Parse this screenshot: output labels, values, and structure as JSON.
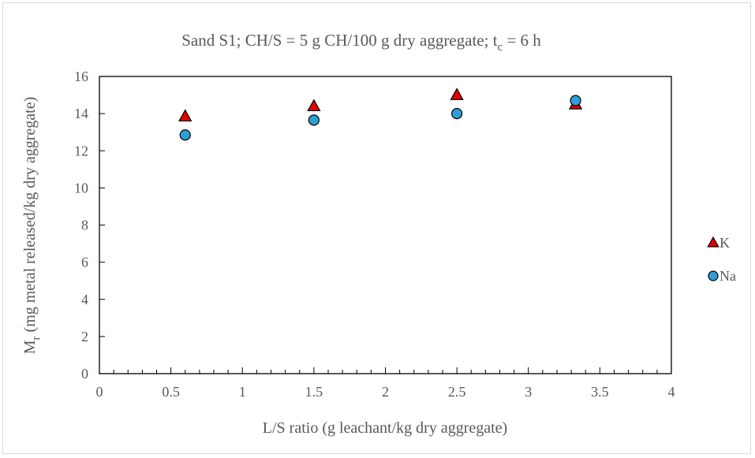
{
  "chart_data": {
    "type": "scatter",
    "title_parts": {
      "main": "Sand S1; CH/S = 5 g CH/100 g dry aggregate; t",
      "sub": "c",
      "tail": " = 6 h"
    },
    "xlabel": "L/S ratio (g leachant/kg dry aggregate)",
    "ylabel_parts": {
      "main": "M",
      "sub": "r",
      "tail": " (mg metal released/kg dry aggregate)"
    },
    "xlim": [
      0,
      4
    ],
    "ylim": [
      0,
      16
    ],
    "x_ticks": [
      0,
      0.5,
      1,
      1.5,
      2,
      2.5,
      3,
      3.5,
      4
    ],
    "x_tick_labels": [
      "0",
      "0.5",
      "1",
      "1.5",
      "2",
      "2.5",
      "3",
      "3.5",
      "4"
    ],
    "x_minor_step": 0.1,
    "y_ticks": [
      0,
      2,
      4,
      6,
      8,
      10,
      12,
      14,
      16
    ],
    "y_tick_labels": [
      "0",
      "2",
      "4",
      "6",
      "8",
      "10",
      "12",
      "14",
      "16"
    ],
    "grid": false,
    "legend_position": "right",
    "series": [
      {
        "name": "K",
        "marker": "triangle",
        "color": "#e60000",
        "points": [
          {
            "x": 0.6,
            "y": 13.85
          },
          {
            "x": 1.5,
            "y": 14.4
          },
          {
            "x": 2.5,
            "y": 15.0
          },
          {
            "x": 3.33,
            "y": 14.5
          }
        ]
      },
      {
        "name": "Na",
        "marker": "circle",
        "color": "#2e9fd6",
        "points": [
          {
            "x": 0.6,
            "y": 12.85
          },
          {
            "x": 1.5,
            "y": 13.65
          },
          {
            "x": 2.5,
            "y": 14.0
          },
          {
            "x": 3.33,
            "y": 14.7
          }
        ]
      }
    ]
  }
}
